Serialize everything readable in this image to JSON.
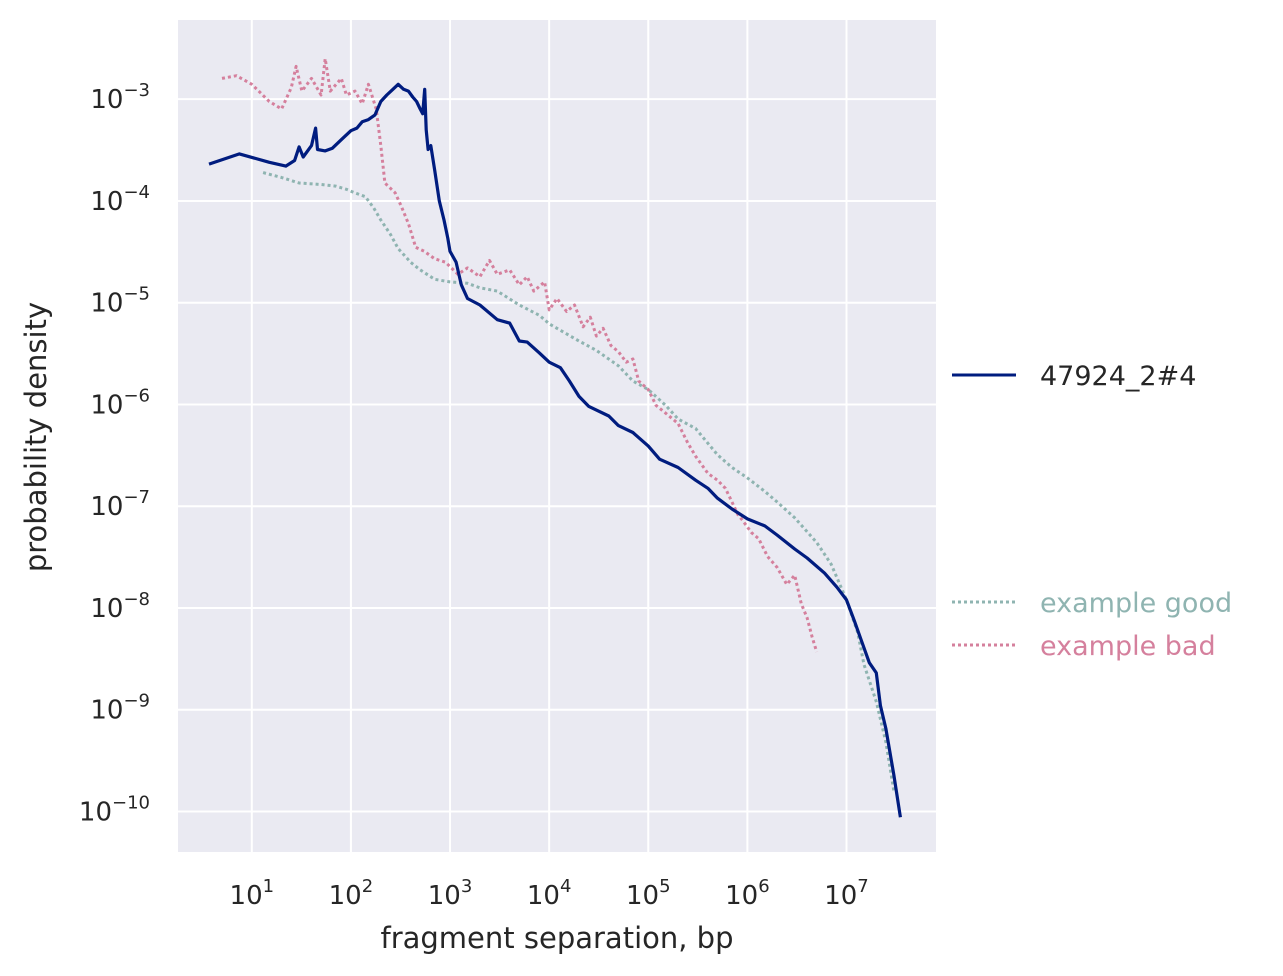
{
  "chart_data": {
    "type": "line",
    "xscale": "log",
    "yscale": "log",
    "xlabel": "fragment separation, bp",
    "ylabel": "probability density",
    "grid": true,
    "xlim": [
      1.8,
      80000000
    ],
    "ylim": [
      4e-11,
      0.006
    ],
    "x_ticks": [
      {
        "value": 10,
        "base": "10",
        "exp": "1"
      },
      {
        "value": 100,
        "base": "10",
        "exp": "2"
      },
      {
        "value": 1000,
        "base": "10",
        "exp": "3"
      },
      {
        "value": 10000,
        "base": "10",
        "exp": "4"
      },
      {
        "value": 100000,
        "base": "10",
        "exp": "5"
      },
      {
        "value": 1000000,
        "base": "10",
        "exp": "6"
      },
      {
        "value": 10000000,
        "base": "10",
        "exp": "7"
      }
    ],
    "y_ticks": [
      {
        "value": 0.001,
        "base": "10",
        "exp": "−3"
      },
      {
        "value": 0.0001,
        "base": "10",
        "exp": "−4"
      },
      {
        "value": 1e-05,
        "base": "10",
        "exp": "−5"
      },
      {
        "value": 1e-06,
        "base": "10",
        "exp": "−6"
      },
      {
        "value": 1e-07,
        "base": "10",
        "exp": "−7"
      },
      {
        "value": 1e-08,
        "base": "10",
        "exp": "−8"
      },
      {
        "value": 1e-09,
        "base": "10",
        "exp": "−9"
      },
      {
        "value": 1e-10,
        "base": "10",
        "exp": "−10"
      }
    ],
    "legend_placement": "right",
    "series": [
      {
        "name": "47924_2#4",
        "color": "#001c7f",
        "style": "solid",
        "points": [
          [
            3.7,
            0.00023
          ],
          [
            7.5,
            0.00029
          ],
          [
            15,
            0.00024
          ],
          [
            22,
            0.00022
          ],
          [
            27,
            0.00025
          ],
          [
            30,
            0.00034
          ],
          [
            33,
            0.00027
          ],
          [
            40,
            0.00035
          ],
          [
            44,
            0.00052
          ],
          [
            46,
            0.00032
          ],
          [
            55,
            0.00031
          ],
          [
            65,
            0.00033
          ],
          [
            80,
            0.0004
          ],
          [
            100,
            0.00049
          ],
          [
            115,
            0.00052
          ],
          [
            130,
            0.0006
          ],
          [
            150,
            0.00063
          ],
          [
            175,
            0.0007
          ],
          [
            200,
            0.00095
          ],
          [
            230,
            0.0011
          ],
          [
            265,
            0.00125
          ],
          [
            300,
            0.0014
          ],
          [
            340,
            0.00125
          ],
          [
            380,
            0.0012
          ],
          [
            420,
            0.00105
          ],
          [
            460,
            0.00095
          ],
          [
            500,
            0.0008
          ],
          [
            530,
            0.00072
          ],
          [
            555,
            0.00125
          ],
          [
            575,
            0.0005
          ],
          [
            600,
            0.00032
          ],
          [
            640,
            0.00035
          ],
          [
            700,
            0.0002
          ],
          [
            780,
            0.0001
          ],
          [
            870,
            6.5e-05
          ],
          [
            950,
            4.3e-05
          ],
          [
            1000,
            3.2e-05
          ],
          [
            1150,
            2.5e-05
          ],
          [
            1300,
            1.5e-05
          ],
          [
            1500,
            1.1e-05
          ],
          [
            2000,
            9.5e-06
          ],
          [
            3000,
            6.8e-06
          ],
          [
            4000,
            6.3e-06
          ],
          [
            5000,
            4.2e-06
          ],
          [
            6000,
            4.1e-06
          ],
          [
            8000,
            3.2e-06
          ],
          [
            10000,
            2.6e-06
          ],
          [
            13000,
            2.3e-06
          ],
          [
            16000,
            1.7e-06
          ],
          [
            20000,
            1.2e-06
          ],
          [
            25000,
            9.6e-07
          ],
          [
            30000,
            8.8e-07
          ],
          [
            40000,
            7.7e-07
          ],
          [
            50000,
            6.2e-07
          ],
          [
            70000,
            5.3e-07
          ],
          [
            100000,
            3.9e-07
          ],
          [
            130000,
            2.9e-07
          ],
          [
            200000,
            2.4e-07
          ],
          [
            300000,
            1.8e-07
          ],
          [
            400000,
            1.5e-07
          ],
          [
            500000,
            1.2e-07
          ],
          [
            700000,
            9.4e-08
          ],
          [
            1000000,
            7.5e-08
          ],
          [
            1500000,
            6.4e-08
          ],
          [
            2000000,
            5.2e-08
          ],
          [
            3000000,
            3.8e-08
          ],
          [
            4000000,
            3.1e-08
          ],
          [
            6000000,
            2.2e-08
          ],
          [
            8000000,
            1.6e-08
          ],
          [
            10000000,
            1.2e-08
          ],
          [
            12000000,
            7.5e-09
          ],
          [
            14000000,
            4.9e-09
          ],
          [
            17000000,
            2.9e-09
          ],
          [
            20000000,
            2.3e-09
          ],
          [
            22000000,
            1.1e-09
          ],
          [
            25000000,
            6.5e-10
          ],
          [
            30000000,
            2.3e-10
          ],
          [
            35000000,
            8.8e-11
          ]
        ]
      },
      {
        "name": "example good",
        "color": "#8fb4b1",
        "style": "dotted",
        "points": [
          [
            13,
            0.00019
          ],
          [
            20,
            0.00017
          ],
          [
            30,
            0.00015
          ],
          [
            50,
            0.000145
          ],
          [
            70,
            0.00014
          ],
          [
            90,
            0.00013
          ],
          [
            110,
            0.00012
          ],
          [
            140,
            0.00011
          ],
          [
            170,
            8.5e-05
          ],
          [
            200,
            6.5e-05
          ],
          [
            250,
            4.7e-05
          ],
          [
            300,
            3.4e-05
          ],
          [
            400,
            2.5e-05
          ],
          [
            500,
            2.1e-05
          ],
          [
            700,
            1.7e-05
          ],
          [
            1000,
            1.6e-05
          ],
          [
            1500,
            1.55e-05
          ],
          [
            2000,
            1.4e-05
          ],
          [
            3000,
            1.3e-05
          ],
          [
            5000,
            9.5e-06
          ],
          [
            8000,
            7.5e-06
          ],
          [
            10000,
            6.2e-06
          ],
          [
            20000,
            4.2e-06
          ],
          [
            30000,
            3.4e-06
          ],
          [
            50000,
            2.4e-06
          ],
          [
            70000,
            1.7e-06
          ],
          [
            100000,
            1.4e-06
          ],
          [
            150000,
            9.8e-07
          ],
          [
            200000,
            7.2e-07
          ],
          [
            300000,
            5.8e-07
          ],
          [
            500000,
            3.2e-07
          ],
          [
            700000,
            2.4e-07
          ],
          [
            1000000,
            1.9e-07
          ],
          [
            1500000,
            1.4e-07
          ],
          [
            2000000,
            1.1e-07
          ],
          [
            3000000,
            7.7e-08
          ],
          [
            5000000,
            4.4e-08
          ],
          [
            7000000,
            2.7e-08
          ],
          [
            10000000,
            1.2e-08
          ],
          [
            13000000,
            5.7e-09
          ],
          [
            15000000,
            2.8e-09
          ],
          [
            20000000,
            1.2e-09
          ],
          [
            25000000,
            4.8e-10
          ],
          [
            30000000,
            1.6e-10
          ]
        ]
      },
      {
        "name": "example bad",
        "color": "#d5809d",
        "style": "dotted",
        "points": [
          [
            5,
            0.0016
          ],
          [
            7,
            0.0017
          ],
          [
            10,
            0.0014
          ],
          [
            15,
            0.00095
          ],
          [
            20,
            0.0008
          ],
          [
            25,
            0.0013
          ],
          [
            28,
            0.0021
          ],
          [
            32,
            0.0012
          ],
          [
            40,
            0.0016
          ],
          [
            50,
            0.0011
          ],
          [
            55,
            0.0025
          ],
          [
            62,
            0.0012
          ],
          [
            80,
            0.0016
          ],
          [
            90,
            0.0011
          ],
          [
            110,
            0.0012
          ],
          [
            130,
            0.0009
          ],
          [
            150,
            0.0014
          ],
          [
            180,
            0.0008
          ],
          [
            200,
            0.00035
          ],
          [
            220,
            0.00015
          ],
          [
            280,
            0.00012
          ],
          [
            320,
            9e-05
          ],
          [
            380,
            6e-05
          ],
          [
            450,
            3.5e-05
          ],
          [
            550,
            3.2e-05
          ],
          [
            700,
            2.7e-05
          ],
          [
            900,
            2.5e-05
          ],
          [
            1200,
            1.9e-05
          ],
          [
            1500,
            2.2e-05
          ],
          [
            2000,
            1.8e-05
          ],
          [
            2500,
            2.6e-05
          ],
          [
            3000,
            1.9e-05
          ],
          [
            4000,
            2.1e-05
          ],
          [
            5000,
            1.5e-05
          ],
          [
            6000,
            1.8e-05
          ],
          [
            7000,
            1.3e-05
          ],
          [
            9000,
            1.6e-05
          ],
          [
            10000,
            8.5e-06
          ],
          [
            12000,
            1.1e-05
          ],
          [
            15000,
            8.2e-06
          ],
          [
            18000,
            9.5e-06
          ],
          [
            22000,
            5.8e-06
          ],
          [
            26000,
            7.2e-06
          ],
          [
            30000,
            4.7e-06
          ],
          [
            35000,
            5.6e-06
          ],
          [
            42000,
            3.8e-06
          ],
          [
            50000,
            3.3e-06
          ],
          [
            60000,
            2.6e-06
          ],
          [
            70000,
            2.8e-06
          ],
          [
            80000,
            1.7e-06
          ],
          [
            100000,
            1.4e-06
          ],
          [
            120000,
            9.8e-07
          ],
          [
            150000,
            8.2e-07
          ],
          [
            200000,
            6.5e-07
          ],
          [
            250000,
            4.2e-07
          ],
          [
            300000,
            3.1e-07
          ],
          [
            400000,
            2.1e-07
          ],
          [
            500000,
            1.8e-07
          ],
          [
            600000,
            1.5e-07
          ],
          [
            700000,
            1.1e-07
          ],
          [
            800000,
            8.3e-08
          ],
          [
            900000,
            7.2e-08
          ],
          [
            1100000,
            5.5e-08
          ],
          [
            1300000,
            4.8e-08
          ],
          [
            1600000,
            3.2e-08
          ],
          [
            2000000,
            2.5e-08
          ],
          [
            2500000,
            1.7e-08
          ],
          [
            3000000,
            2.1e-08
          ],
          [
            3500000,
            1.1e-08
          ],
          [
            4000000,
            8e-09
          ],
          [
            4500000,
            5.2e-09
          ],
          [
            5000000,
            3.7e-09
          ]
        ]
      }
    ]
  }
}
